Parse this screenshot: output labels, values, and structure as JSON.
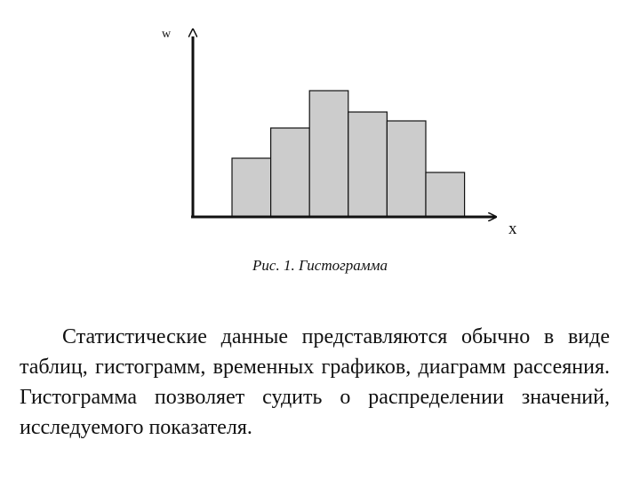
{
  "figure": {
    "y_axis_letter": "w",
    "x_axis_letter": "x",
    "caption": "Рис. 1. Гистограмма"
  },
  "chart_data": {
    "type": "bar",
    "title": "",
    "xlabel": "x",
    "ylabel": "w",
    "values": [
      0.33,
      0.5,
      0.71,
      0.59,
      0.54,
      0.25
    ],
    "ylim": [
      0,
      1
    ],
    "grid": false,
    "bar_color": "#cccccc",
    "bar_edge_color": "#111111"
  },
  "body_text": "Статистические данные представляются обычно в виде таблиц, гистограмм, временных графиков, диаграмм рассеяния. Гистограмма позволяет судить о распределении значений, исследуемого показателя."
}
